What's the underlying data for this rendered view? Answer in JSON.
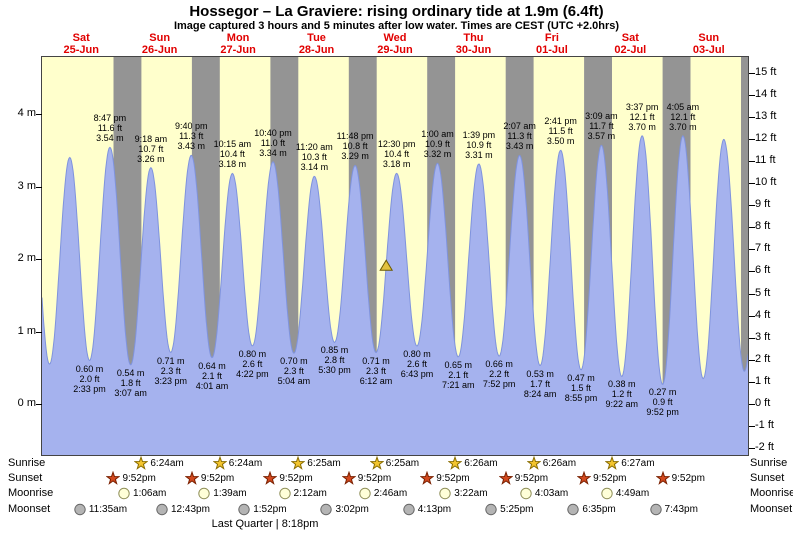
{
  "header": {
    "title": "Hossegor – La Graviere: rising  ordinary tide at 1.9m (6.4ft)",
    "subtitle": "Image captured 3 hours and 5 minutes after low water. Times are CEST (UTC +2.0hrs)"
  },
  "days": [
    {
      "name": "Sat",
      "date": "25-Jun"
    },
    {
      "name": "Sun",
      "date": "26-Jun"
    },
    {
      "name": "Mon",
      "date": "27-Jun"
    },
    {
      "name": "Tue",
      "date": "28-Jun"
    },
    {
      "name": "Wed",
      "date": "29-Jun"
    },
    {
      "name": "Thu",
      "date": "30-Jun"
    },
    {
      "name": "Fri",
      "date": "01-Jul"
    },
    {
      "name": "Sat",
      "date": "02-Jul"
    },
    {
      "name": "Sun",
      "date": "03-Jul"
    }
  ],
  "axes": {
    "left_ticks": [
      {
        "label": "4 m",
        "value": 4
      },
      {
        "label": "3 m",
        "value": 3
      },
      {
        "label": "2 m",
        "value": 2
      },
      {
        "label": "1 m",
        "value": 1
      },
      {
        "label": "0 m",
        "value": 0
      }
    ],
    "right_ticks": [
      {
        "label": "15 ft",
        "value": 15
      },
      {
        "label": "14 ft",
        "value": 14
      },
      {
        "label": "13 ft",
        "value": 13
      },
      {
        "label": "12 ft",
        "value": 12
      },
      {
        "label": "11 ft",
        "value": 11
      },
      {
        "label": "10 ft",
        "value": 10
      },
      {
        "label": "9 ft",
        "value": 9
      },
      {
        "label": "8 ft",
        "value": 8
      },
      {
        "label": "7 ft",
        "value": 7
      },
      {
        "label": "6 ft",
        "value": 6
      },
      {
        "label": "5 ft",
        "value": 5
      },
      {
        "label": "4 ft",
        "value": 4
      },
      {
        "label": "3 ft",
        "value": 3
      },
      {
        "label": "2 ft",
        "value": 2
      },
      {
        "label": "1 ft",
        "value": 1
      },
      {
        "label": "0 ft",
        "value": 0
      },
      {
        "label": "-1 ft",
        "value": -1
      },
      {
        "label": "-2 ft",
        "value": -2
      }
    ]
  },
  "chart_data": {
    "type": "area",
    "title": "Hossegor – La Graviere tide curve, 25-Jun to 03-Jul",
    "x_unit": "hours from 25-Jun 00:00",
    "x_range_hours": [
      0,
      216
    ],
    "y_left_unit": "m",
    "y_right_unit": "ft",
    "y_visible_range_m": [
      -0.7,
      4.79
    ],
    "grid": false,
    "colors": {
      "plot_background": "#ffffcc",
      "night_band": "#949494",
      "tide_fill": "#a5b2ee",
      "tide_stroke": "#7f93dd",
      "day_label": "#e10000",
      "marker_fill": "#e2c23e",
      "marker_stroke": "#6b5a00"
    },
    "night": {
      "sunset": "9:52pm",
      "sunrise": "6:24am"
    },
    "marker": {
      "time_h": 105.3,
      "height_m": 1.9
    },
    "extremes": [
      {
        "type": "high",
        "t": -3.8,
        "height_m": 3.5
      },
      {
        "type": "low",
        "t": 2.3,
        "height_m": 0.55
      },
      {
        "type": "high",
        "t": 8.5,
        "height_m": 3.4
      },
      {
        "type": "low",
        "t": 14.55,
        "height_m": 0.6,
        "labels": [
          "0.60 m",
          "2.0 ft",
          "2:33 pm"
        ]
      },
      {
        "type": "high",
        "t": 20.78,
        "height_m": 3.54,
        "labels": [
          "8:47 pm",
          "11.6 ft",
          "3.54 m"
        ]
      },
      {
        "type": "low",
        "t": 27.12,
        "height_m": 0.54,
        "labels": [
          "0.54 m",
          "1.8 ft",
          "3:07 am"
        ]
      },
      {
        "type": "high",
        "t": 33.3,
        "height_m": 3.26,
        "labels": [
          "9:18 am",
          "10.7 ft",
          "3.26 m"
        ]
      },
      {
        "type": "low",
        "t": 39.38,
        "height_m": 0.71,
        "labels": [
          "0.71 m",
          "2.3 ft",
          "3:23 pm"
        ]
      },
      {
        "type": "high",
        "t": 45.67,
        "height_m": 3.43,
        "labels": [
          "9:40 pm",
          "11.3 ft",
          "3.43 m"
        ]
      },
      {
        "type": "low",
        "t": 52.02,
        "height_m": 0.64,
        "labels": [
          "0.64 m",
          "2.1 ft",
          "4:01 am"
        ]
      },
      {
        "type": "high",
        "t": 58.25,
        "height_m": 3.18,
        "labels": [
          "10:15 am",
          "10.4 ft",
          "3.18 m"
        ]
      },
      {
        "type": "low",
        "t": 64.37,
        "height_m": 0.8,
        "labels": [
          "0.80 m",
          "2.6 ft",
          "4:22 pm"
        ]
      },
      {
        "type": "high",
        "t": 70.67,
        "height_m": 3.34,
        "labels": [
          "10:40 pm",
          "11.0 ft",
          "3.34 m"
        ]
      },
      {
        "type": "low",
        "t": 77.07,
        "height_m": 0.7,
        "labels": [
          "0.70 m",
          "2.3 ft",
          "5:04 am"
        ]
      },
      {
        "type": "high",
        "t": 83.33,
        "height_m": 3.14,
        "labels": [
          "11:20 am",
          "10.3 ft",
          "3.14 m"
        ]
      },
      {
        "type": "low",
        "t": 89.5,
        "height_m": 0.85,
        "labels": [
          "0.85 m",
          "2.8 ft",
          "5:30 pm"
        ]
      },
      {
        "type": "high",
        "t": 95.8,
        "height_m": 3.29,
        "labels": [
          "11:48 pm",
          "10.8 ft",
          "3.29 m"
        ]
      },
      {
        "type": "low",
        "t": 102.2,
        "height_m": 0.71,
        "labels": [
          "0.71 m",
          "2.3 ft",
          "6:12 am"
        ]
      },
      {
        "type": "high",
        "t": 108.5,
        "height_m": 3.18,
        "labels": [
          "12:30 pm",
          "10.4 ft",
          "3.18 m"
        ]
      },
      {
        "type": "low",
        "t": 114.72,
        "height_m": 0.8,
        "labels": [
          "0.80 m",
          "2.6 ft",
          "6:43 pm"
        ]
      },
      {
        "type": "high",
        "t": 121.0,
        "height_m": 3.32,
        "labels": [
          "1:00 am",
          "10.9 ft",
          "3.32 m"
        ]
      },
      {
        "type": "low",
        "t": 127.35,
        "height_m": 0.65,
        "labels": [
          "0.65 m",
          "2.1 ft",
          "7:21 am"
        ]
      },
      {
        "type": "high",
        "t": 133.65,
        "height_m": 3.31,
        "labels": [
          "1:39 pm",
          "10.9 ft",
          "3.31 m"
        ]
      },
      {
        "type": "low",
        "t": 139.87,
        "height_m": 0.66,
        "labels": [
          "0.66 m",
          "2.2 ft",
          "7:52 pm"
        ]
      },
      {
        "type": "high",
        "t": 146.12,
        "height_m": 3.43,
        "labels": [
          "2:07 am",
          "11.3 ft",
          "3.43 m"
        ]
      },
      {
        "type": "low",
        "t": 152.4,
        "height_m": 0.53,
        "labels": [
          "0.53 m",
          "1.7 ft",
          "8:24 am"
        ]
      },
      {
        "type": "high",
        "t": 158.68,
        "height_m": 3.5,
        "labels": [
          "2:41 pm",
          "11.5 ft",
          "3.50 m"
        ]
      },
      {
        "type": "low",
        "t": 164.92,
        "height_m": 0.47,
        "labels": [
          "0.47 m",
          "1.5 ft",
          "8:55 pm"
        ]
      },
      {
        "type": "high",
        "t": 171.15,
        "height_m": 3.57,
        "labels": [
          "3:09 am",
          "11.7 ft",
          "3.57 m"
        ]
      },
      {
        "type": "low",
        "t": 177.37,
        "height_m": 0.38,
        "labels": [
          "0.38 m",
          "1.2 ft",
          "9:22 am"
        ]
      },
      {
        "type": "high",
        "t": 183.62,
        "height_m": 3.7,
        "labels": [
          "3:37 pm",
          "12.1 ft",
          "3.70 m"
        ]
      },
      {
        "type": "low",
        "t": 189.87,
        "height_m": 0.27,
        "labels": [
          "0.27 m",
          "0.9 ft",
          "9:52 pm"
        ]
      },
      {
        "type": "high",
        "t": 196.08,
        "height_m": 3.7,
        "labels": [
          "4:05 am",
          "12.1 ft",
          "3.70 m"
        ]
      },
      {
        "type": "low",
        "t": 202.3,
        "height_m": 0.35
      },
      {
        "type": "high",
        "t": 208.6,
        "height_m": 3.65
      },
      {
        "type": "low",
        "t": 214.9,
        "height_m": 0.45
      }
    ]
  },
  "astro": {
    "rows": [
      {
        "id": "sunrise",
        "label": "Sunrise",
        "icon": "star",
        "icon_fill": "#f4c52e",
        "icon_stroke": "#8a6d00",
        "events": [
          {
            "day": 1,
            "time": "6:24am"
          },
          {
            "day": 2,
            "time": "6:24am"
          },
          {
            "day": 3,
            "time": "6:25am"
          },
          {
            "day": 4,
            "time": "6:25am"
          },
          {
            "day": 5,
            "time": "6:26am"
          },
          {
            "day": 6,
            "time": "6:26am"
          },
          {
            "day": 7,
            "time": "6:27am"
          }
        ]
      },
      {
        "id": "sunset",
        "label": "Sunset",
        "icon": "star",
        "icon_fill": "#d2491f",
        "icon_stroke": "#7a2000",
        "events": [
          {
            "day": 0,
            "time": "9:52pm"
          },
          {
            "day": 1,
            "time": "9:52pm"
          },
          {
            "day": 2,
            "time": "9:52pm"
          },
          {
            "day": 3,
            "time": "9:52pm"
          },
          {
            "day": 4,
            "time": "9:52pm"
          },
          {
            "day": 5,
            "time": "9:52pm"
          },
          {
            "day": 6,
            "time": "9:52pm"
          },
          {
            "day": 7,
            "time": "9:52pm"
          }
        ]
      },
      {
        "id": "moonrise",
        "label": "Moonrise",
        "icon": "circle",
        "icon_fill": "#ffffd8",
        "icon_stroke": "#90905a",
        "events": [
          {
            "day": 1,
            "time": "1:06am"
          },
          {
            "day": 2,
            "time": "1:39am"
          },
          {
            "day": 3,
            "time": "2:12am"
          },
          {
            "day": 4,
            "time": "2:46am"
          },
          {
            "day": 5,
            "time": "3:22am"
          },
          {
            "day": 6,
            "time": "4:03am"
          },
          {
            "day": 7,
            "time": "4:49am"
          }
        ]
      },
      {
        "id": "moonset",
        "label": "Moonset",
        "icon": "circle",
        "icon_fill": "#b4b4b4",
        "icon_stroke": "#666666",
        "events": [
          {
            "day": 0,
            "time": "11:35am"
          },
          {
            "day": 1,
            "time": "12:43pm"
          },
          {
            "day": 2,
            "time": "1:52pm"
          },
          {
            "day": 3,
            "time": "3:02pm"
          },
          {
            "day": 4,
            "time": "4:13pm"
          },
          {
            "day": 5,
            "time": "5:25pm"
          },
          {
            "day": 6,
            "time": "6:35pm"
          },
          {
            "day": 7,
            "time": "7:43pm"
          }
        ]
      }
    ],
    "footer": "Last Quarter | 8:18pm"
  }
}
